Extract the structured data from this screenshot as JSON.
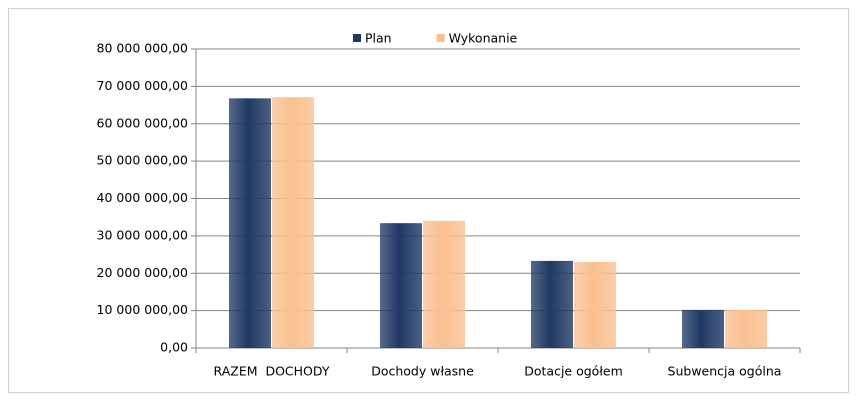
{
  "chart_data": {
    "type": "bar",
    "categories": [
      "RAZEM  DOCHODY",
      "Dochody własne",
      "Dotacje ogółem",
      "Subwencja ogólna"
    ],
    "series": [
      {
        "name": "Plan",
        "color": "#1f3864",
        "values": [
          66800000,
          33400000,
          23300000,
          10200000
        ]
      },
      {
        "name": "Wykonanie",
        "color": "#fac090",
        "values": [
          67100000,
          34000000,
          23000000,
          10200000
        ]
      }
    ],
    "ylim": [
      0,
      80000000
    ],
    "yticks": [
      {
        "value": 0,
        "label": "0,00"
      },
      {
        "value": 10000000,
        "label": "10 000 000,00"
      },
      {
        "value": 20000000,
        "label": "20 000 000,00"
      },
      {
        "value": 30000000,
        "label": "30 000 000,00"
      },
      {
        "value": 40000000,
        "label": "40 000 000,00"
      },
      {
        "value": 50000000,
        "label": "50 000 000,00"
      },
      {
        "value": 60000000,
        "label": "60 000 000,00"
      },
      {
        "value": 70000000,
        "label": "70 000 000,00"
      },
      {
        "value": 80000000,
        "label": "80 000 000,00"
      }
    ],
    "grid": true,
    "legend": "top"
  }
}
